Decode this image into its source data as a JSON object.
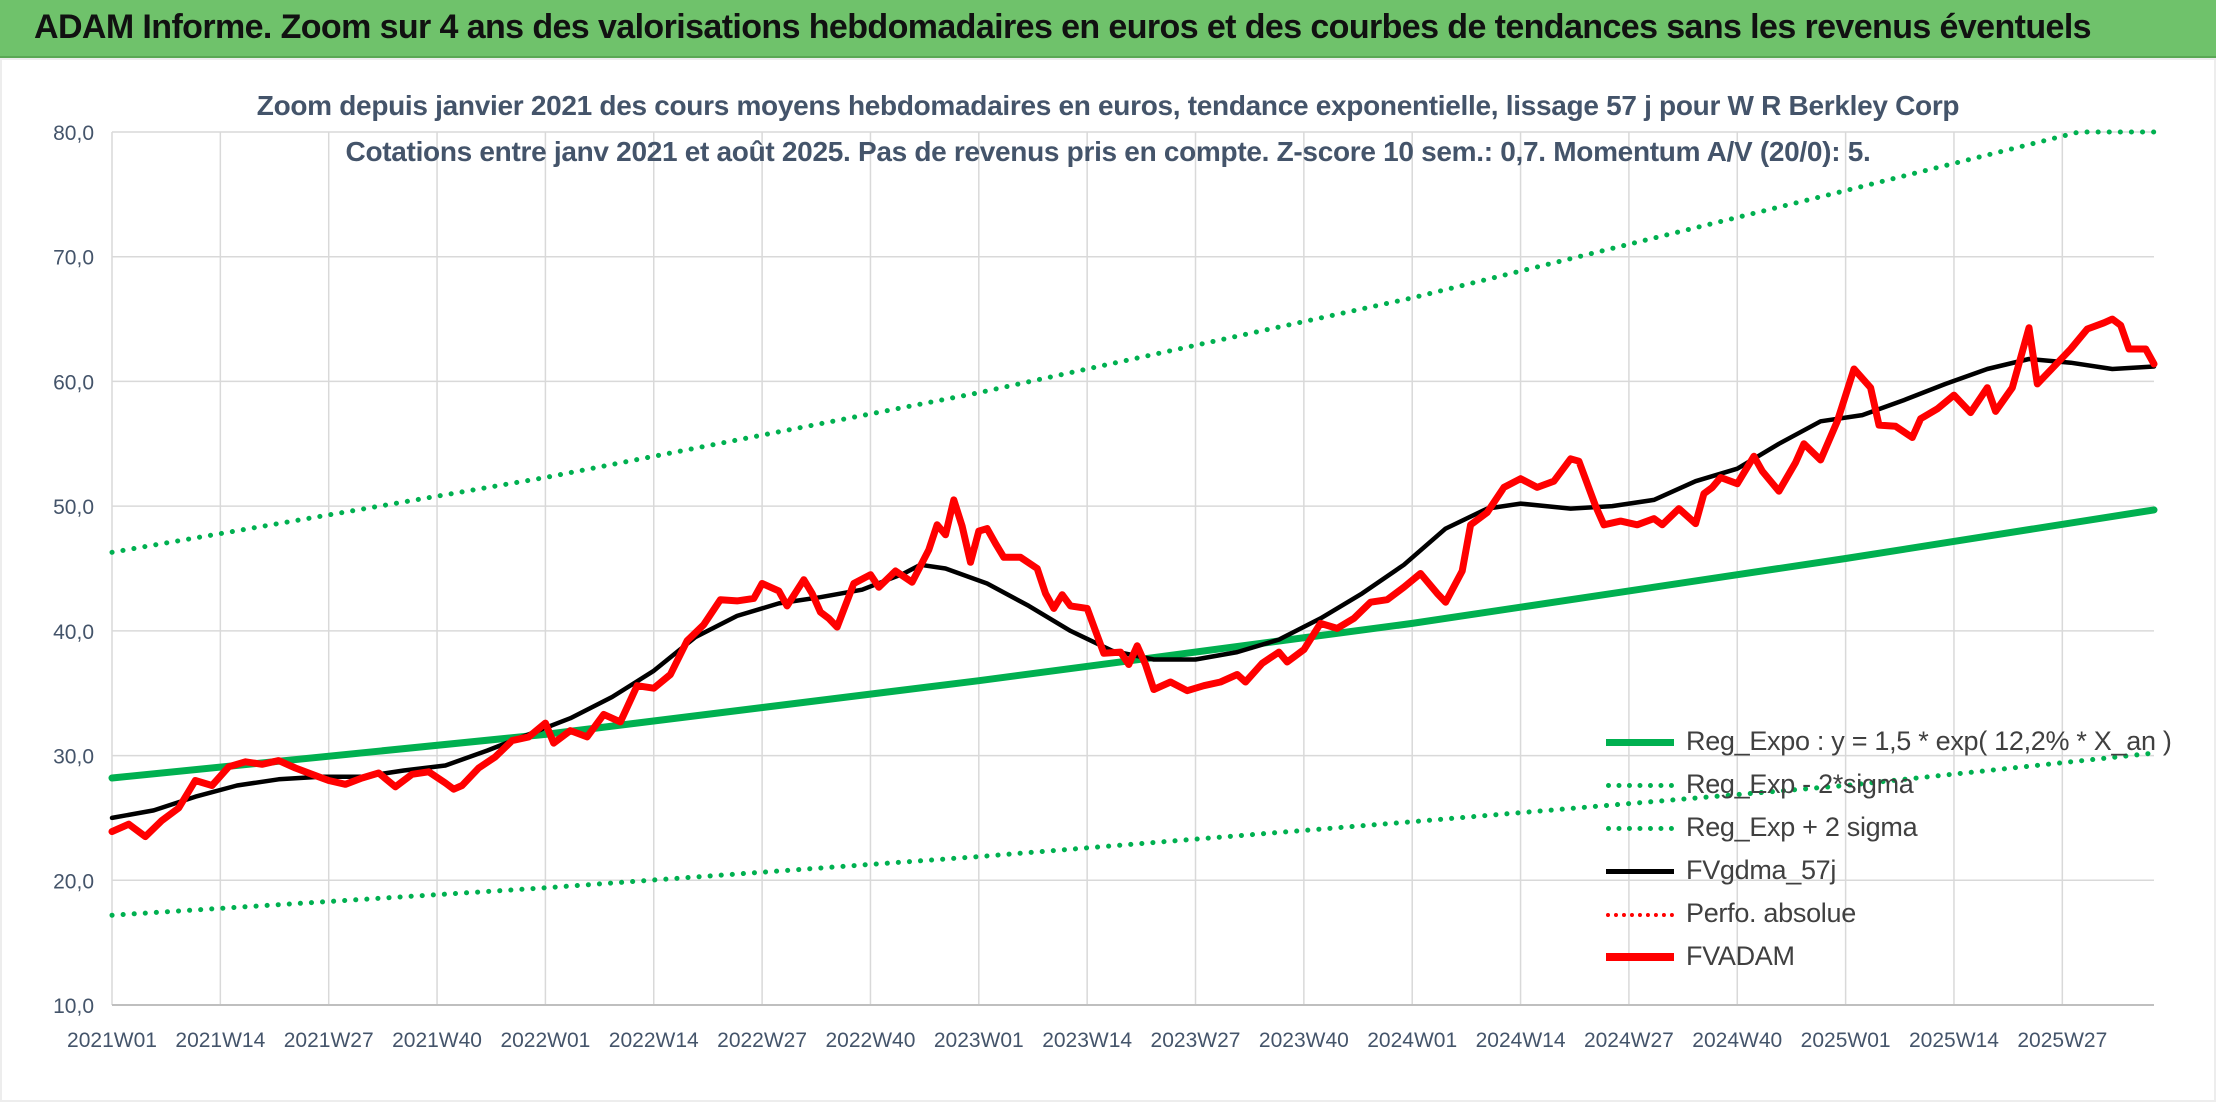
{
  "header": {
    "title": "ADAM Informe. Zoom sur 4 ans des valorisations hebdomadaires en euros et des courbes de tendances sans les revenus éventuels"
  },
  "colors": {
    "banner": "#6fc26b",
    "trend": "#00b050",
    "smoothed": "#000000",
    "price": "#ff0000",
    "title_text": "#44546a"
  },
  "chart_data": {
    "type": "line",
    "title": "Zoom depuis janvier 2021 des cours moyens hebdomadaires en euros, tendance exponentielle, lissage 57 j pour W R Berkley Corp",
    "subtitle": "Cotations entre janv 2021 et août 2025. Pas de revenus pris en compte. Z-score 10 sem.: 0,7. Momentum A/V (20/0): 5.",
    "xlabel": "",
    "ylabel": "",
    "ylim": [
      10,
      80
    ],
    "y_ticks": [
      "10,0",
      "20,0",
      "30,0",
      "40,0",
      "50,0",
      "60,0",
      "70,0",
      "80,0"
    ],
    "x_ticks": [
      "2021W01",
      "2021W14",
      "2021W27",
      "2021W40",
      "2022W01",
      "2022W14",
      "2022W27",
      "2022W40",
      "2023W01",
      "2023W14",
      "2023W27",
      "2023W40",
      "2024W01",
      "2024W14",
      "2024W27",
      "2024W40",
      "2025W01",
      "2025W14",
      "2025W27"
    ],
    "x_tick_week_index": [
      0,
      13,
      26,
      39,
      52,
      65,
      78,
      91,
      104,
      117,
      130,
      143,
      156,
      169,
      182,
      195,
      208,
      221,
      234
    ],
    "x_range_weeks": [
      0,
      245
    ],
    "grid": "vertical and horizontal",
    "legend_position": "bottom-right",
    "series": [
      {
        "name": "Reg_Expo : y = 1,5 * exp( 12,2% *  X_an )",
        "style": "solid-thick",
        "color": "#00b050",
        "points": [
          [
            0,
            28.2
          ],
          [
            52,
            31.7
          ],
          [
            104,
            36.0
          ],
          [
            156,
            40.6
          ],
          [
            208,
            45.8
          ],
          [
            245,
            49.7
          ]
        ]
      },
      {
        "name": "Reg_Exp - 2*sigma",
        "style": "dotted",
        "color": "#00b050",
        "points": [
          [
            0,
            17.2
          ],
          [
            52,
            19.4
          ],
          [
            104,
            21.9
          ],
          [
            156,
            24.7
          ],
          [
            208,
            27.6
          ],
          [
            245,
            30.2
          ]
        ]
      },
      {
        "name": "Reg_Exp + 2 sigma",
        "style": "dotted",
        "color": "#00b050",
        "points": [
          [
            0,
            46.3
          ],
          [
            52,
            52.3
          ],
          [
            104,
            59.1
          ],
          [
            156,
            66.7
          ],
          [
            208,
            75.3
          ],
          [
            236,
            80.0
          ],
          [
            245,
            80.0
          ]
        ]
      },
      {
        "name": "FVgdma_57j",
        "style": "solid",
        "color": "#000000",
        "points": [
          [
            0,
            25.0
          ],
          [
            5,
            25.6
          ],
          [
            10,
            26.7
          ],
          [
            15,
            27.6
          ],
          [
            20,
            28.1
          ],
          [
            25,
            28.3
          ],
          [
            30,
            28.3
          ],
          [
            35,
            28.8
          ],
          [
            40,
            29.2
          ],
          [
            45,
            30.4
          ],
          [
            50,
            31.7
          ],
          [
            55,
            33.0
          ],
          [
            60,
            34.7
          ],
          [
            65,
            36.8
          ],
          [
            70,
            39.5
          ],
          [
            75,
            41.2
          ],
          [
            80,
            42.2
          ],
          [
            85,
            42.7
          ],
          [
            90,
            43.3
          ],
          [
            95,
            44.6
          ],
          [
            97,
            45.3
          ],
          [
            100,
            45.0
          ],
          [
            105,
            43.8
          ],
          [
            110,
            42.0
          ],
          [
            115,
            40.0
          ],
          [
            120,
            38.4
          ],
          [
            125,
            37.7
          ],
          [
            130,
            37.7
          ],
          [
            135,
            38.3
          ],
          [
            140,
            39.3
          ],
          [
            145,
            41.0
          ],
          [
            150,
            43.0
          ],
          [
            155,
            45.3
          ],
          [
            160,
            48.2
          ],
          [
            165,
            49.8
          ],
          [
            169,
            50.2
          ],
          [
            175,
            49.8
          ],
          [
            180,
            50.0
          ],
          [
            185,
            50.5
          ],
          [
            190,
            52.0
          ],
          [
            195,
            53.0
          ],
          [
            200,
            55.0
          ],
          [
            205,
            56.8
          ],
          [
            210,
            57.3
          ],
          [
            215,
            58.5
          ],
          [
            220,
            59.8
          ],
          [
            225,
            61.0
          ],
          [
            230,
            61.8
          ],
          [
            235,
            61.5
          ],
          [
            240,
            61.0
          ],
          [
            245,
            61.2
          ]
        ]
      },
      {
        "name": "Perfo. absolue",
        "style": "dotted",
        "color": "#ff0000",
        "points": []
      },
      {
        "name": "FVADAM",
        "style": "solid-thick",
        "color": "#ff0000",
        "points": [
          [
            0,
            23.9
          ],
          [
            2,
            24.5
          ],
          [
            4,
            23.5
          ],
          [
            6,
            24.8
          ],
          [
            8,
            25.8
          ],
          [
            10,
            28.0
          ],
          [
            12,
            27.6
          ],
          [
            14,
            29.1
          ],
          [
            16,
            29.5
          ],
          [
            18,
            29.3
          ],
          [
            20,
            29.6
          ],
          [
            22,
            29.0
          ],
          [
            24,
            28.5
          ],
          [
            26,
            28.0
          ],
          [
            28,
            27.7
          ],
          [
            30,
            28.2
          ],
          [
            32,
            28.6
          ],
          [
            34,
            27.5
          ],
          [
            36,
            28.5
          ],
          [
            38,
            28.7
          ],
          [
            40,
            27.8
          ],
          [
            41,
            27.3
          ],
          [
            42,
            27.6
          ],
          [
            44,
            29.0
          ],
          [
            46,
            29.9
          ],
          [
            48,
            31.2
          ],
          [
            50,
            31.5
          ],
          [
            52,
            32.6
          ],
          [
            53,
            31.0
          ],
          [
            55,
            32.0
          ],
          [
            57,
            31.5
          ],
          [
            59,
            33.3
          ],
          [
            61,
            32.7
          ],
          [
            63,
            35.6
          ],
          [
            65,
            35.4
          ],
          [
            67,
            36.5
          ],
          [
            69,
            39.2
          ],
          [
            71,
            40.5
          ],
          [
            73,
            42.5
          ],
          [
            75,
            42.4
          ],
          [
            77,
            42.6
          ],
          [
            78,
            43.8
          ],
          [
            80,
            43.2
          ],
          [
            81,
            42.0
          ],
          [
            83,
            44.1
          ],
          [
            84,
            43.0
          ],
          [
            85,
            41.5
          ],
          [
            86,
            41.0
          ],
          [
            87,
            40.3
          ],
          [
            89,
            43.8
          ],
          [
            91,
            44.5
          ],
          [
            92,
            43.5
          ],
          [
            94,
            44.8
          ],
          [
            96,
            43.9
          ],
          [
            98,
            46.5
          ],
          [
            99,
            48.5
          ],
          [
            100,
            47.7
          ],
          [
            101,
            50.5
          ],
          [
            102,
            48.4
          ],
          [
            103,
            45.5
          ],
          [
            104,
            48.0
          ],
          [
            105,
            48.2
          ],
          [
            106,
            47.0
          ],
          [
            107,
            45.9
          ],
          [
            109,
            45.9
          ],
          [
            111,
            45.0
          ],
          [
            112,
            43.0
          ],
          [
            113,
            41.8
          ],
          [
            114,
            42.9
          ],
          [
            115,
            42.0
          ],
          [
            117,
            41.8
          ],
          [
            118,
            40.0
          ],
          [
            119,
            38.2
          ],
          [
            121,
            38.3
          ],
          [
            122,
            37.3
          ],
          [
            123,
            38.8
          ],
          [
            124,
            37.3
          ],
          [
            125,
            35.3
          ],
          [
            127,
            35.9
          ],
          [
            129,
            35.2
          ],
          [
            131,
            35.6
          ],
          [
            133,
            35.9
          ],
          [
            135,
            36.5
          ],
          [
            136,
            35.9
          ],
          [
            138,
            37.4
          ],
          [
            140,
            38.3
          ],
          [
            141,
            37.5
          ],
          [
            143,
            38.5
          ],
          [
            145,
            40.6
          ],
          [
            147,
            40.2
          ],
          [
            149,
            41.0
          ],
          [
            151,
            42.3
          ],
          [
            153,
            42.5
          ],
          [
            155,
            43.5
          ],
          [
            157,
            44.6
          ],
          [
            159,
            43.0
          ],
          [
            160,
            42.3
          ],
          [
            162,
            44.8
          ],
          [
            163,
            48.5
          ],
          [
            165,
            49.5
          ],
          [
            167,
            51.5
          ],
          [
            169,
            52.2
          ],
          [
            171,
            51.5
          ],
          [
            173,
            52.0
          ],
          [
            175,
            53.8
          ],
          [
            176,
            53.6
          ],
          [
            178,
            50.0
          ],
          [
            179,
            48.5
          ],
          [
            181,
            48.8
          ],
          [
            183,
            48.5
          ],
          [
            185,
            49.0
          ],
          [
            186,
            48.5
          ],
          [
            188,
            49.8
          ],
          [
            190,
            48.6
          ],
          [
            191,
            51.0
          ],
          [
            192,
            51.5
          ],
          [
            193,
            52.3
          ],
          [
            195,
            51.8
          ],
          [
            197,
            54.0
          ],
          [
            198,
            52.8
          ],
          [
            200,
            51.2
          ],
          [
            202,
            53.5
          ],
          [
            203,
            55.0
          ],
          [
            205,
            53.7
          ],
          [
            207,
            56.8
          ],
          [
            209,
            61.0
          ],
          [
            211,
            59.5
          ],
          [
            212,
            56.5
          ],
          [
            214,
            56.4
          ],
          [
            216,
            55.5
          ],
          [
            217,
            57.0
          ],
          [
            219,
            57.8
          ],
          [
            221,
            58.9
          ],
          [
            223,
            57.5
          ],
          [
            225,
            59.5
          ],
          [
            226,
            57.6
          ],
          [
            228,
            59.5
          ],
          [
            230,
            64.3
          ],
          [
            231,
            59.8
          ],
          [
            233,
            61.2
          ],
          [
            235,
            62.6
          ],
          [
            237,
            64.2
          ],
          [
            239,
            64.7
          ],
          [
            240,
            65.0
          ],
          [
            241,
            64.5
          ],
          [
            242,
            62.6
          ],
          [
            244,
            62.6
          ],
          [
            245,
            61.4
          ]
        ]
      }
    ]
  }
}
